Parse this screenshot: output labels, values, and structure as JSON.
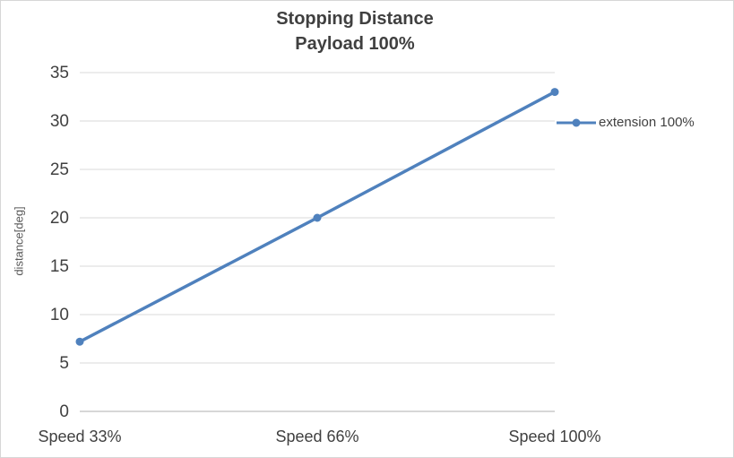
{
  "chart": {
    "title_line1": "Stopping Distance",
    "title_line2": "Payload 100%",
    "y_axis_title": "distance[deg]",
    "legend_label": "extension 100%"
  },
  "chart_data": {
    "type": "line",
    "title": "Stopping Distance Payload 100%",
    "categories": [
      "Speed 33%",
      "Speed 66%",
      "Speed 100%"
    ],
    "series": [
      {
        "name": "extension 100%",
        "values": [
          7.2,
          20,
          33
        ]
      }
    ],
    "xlabel": "",
    "ylabel": "distance[deg]",
    "ylim": [
      0,
      35
    ],
    "ytick_step": 5,
    "grid": true,
    "legend_position": "right",
    "line_color": "#4F81BD",
    "gridline_color": "#D9D9D9",
    "axis_line_color": "#BFBFBF",
    "tick_label_color": "#404040"
  }
}
